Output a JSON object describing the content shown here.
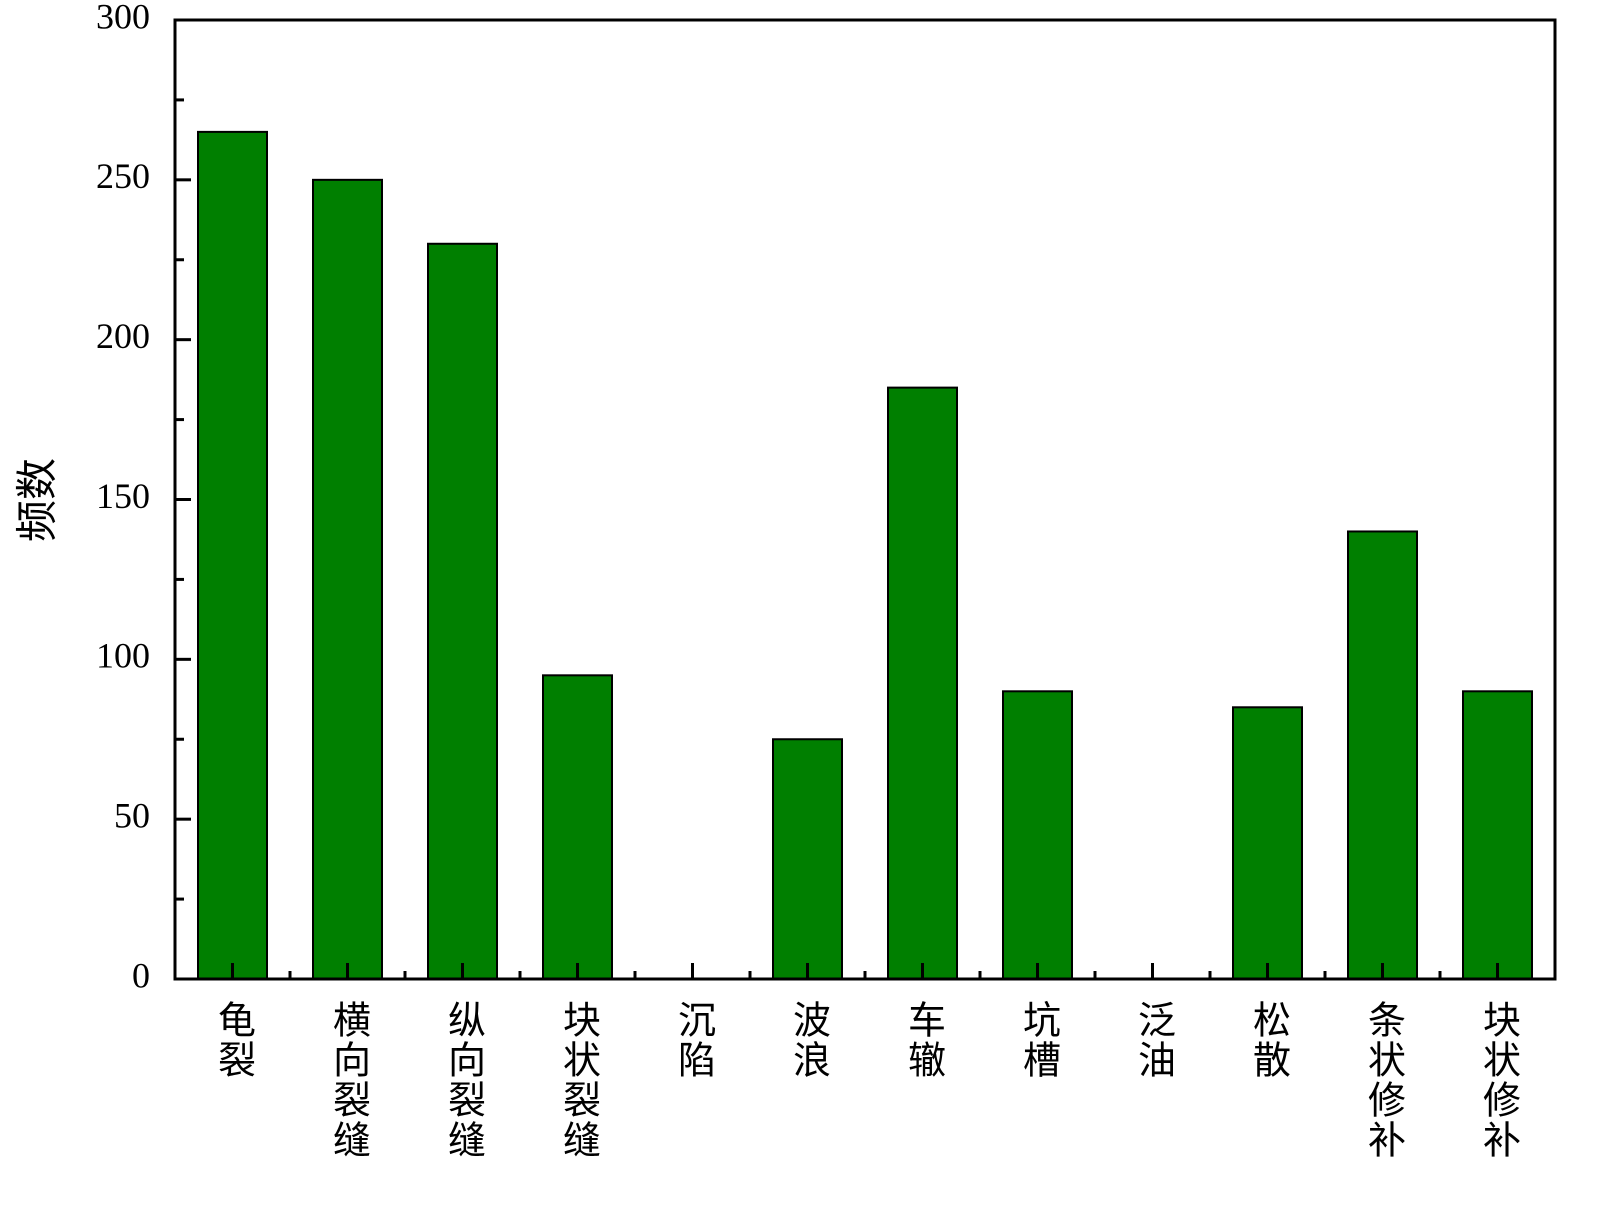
{
  "chart_data": {
    "type": "bar",
    "y_label": "频数",
    "categories": [
      "龟裂",
      "横向裂缝",
      "纵向裂缝",
      "块状裂缝",
      "沉陷",
      "波浪",
      "车辙",
      "坑槽",
      "泛油",
      "松散",
      "条状修补",
      "块状修补"
    ],
    "values": [
      265,
      250,
      230,
      95,
      0,
      75,
      185,
      90,
      0,
      85,
      140,
      90
    ],
    "color": "#007f00",
    "ylim": [
      0,
      300
    ],
    "yticks": [
      0,
      50,
      100,
      150,
      200,
      250,
      300
    ],
    "grid": false
  }
}
